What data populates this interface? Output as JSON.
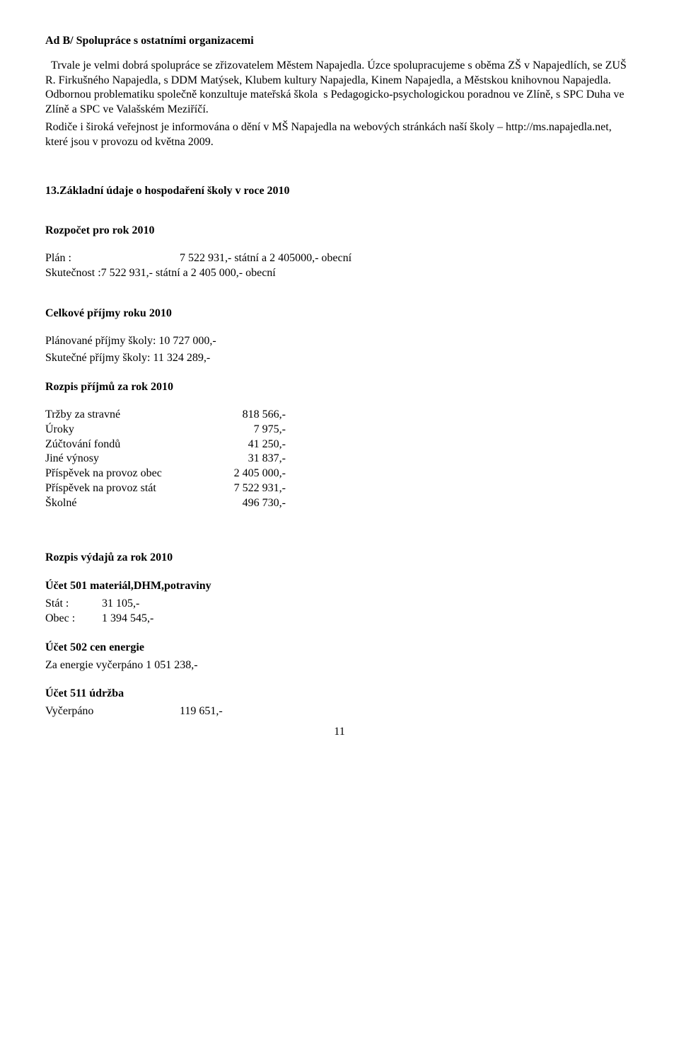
{
  "heading_adb": "Ad B/ Spolupráce s ostatními organizacemi",
  "para1": "  Trvale je velmi dobrá spolupráce se zřizovatelem Městem Napajedla. Úzce spolupracujeme s oběma ZŠ v Napajedlích, se ZUŠ R. Firkušného Napajedla, s DDM Matýsek, Klubem kultury Napajedla, Kinem Napajedla, a Městskou knihovnou Napajedla. Odbornou problematiku společně konzultuje mateřská škola  s Pedagogicko-psychologickou poradnou ve Zlíně, s SPC Duha ve Zlíně a SPC ve Valašském Meziříčí.",
  "para2": "Rodiče i široká veřejnost je informována o dění v MŠ Napajedla na webových stránkách naší školy – http://ms.napajedla.net, které jsou v provozu od května 2009.",
  "s13_title": "13.Základní údaje o hospodaření školy v roce 2010",
  "rozpocet_title": "Rozpočet pro rok 2010",
  "plan_label": "Plán :",
  "plan_value": "7 522 931,- státní a 2 405000,- obecní",
  "skut_line": "Skutečnost :7 522 931,- státní a 2 405 000,- obecní",
  "celkove_prijmy_title": "Celkové příjmy roku 2010",
  "planovane_prijmy": "Plánované příjmy školy: 10 727  000,-",
  "skutecne_prijmy": "Skutečné  příjmy školy: 11 324  289,-",
  "rozpis_prijmu_title": "Rozpis příjmů za rok  2010",
  "prijmy": [
    {
      "k": "Tržby za stravné",
      "v": "818  566,-"
    },
    {
      "k": "Úroky",
      "v": "7  975,-"
    },
    {
      "k": "Zúčtování fondů",
      "v": "41  250,-"
    },
    {
      "k": "Jiné výnosy",
      "v": "31  837,-"
    },
    {
      "k": "Příspěvek na provoz obec",
      "v": "2 405 000,-"
    },
    {
      "k": "Příspěvek na provoz stát",
      "v": "7 522 931,-"
    },
    {
      "k": "Školné",
      "v": "496 730,-"
    }
  ],
  "rozpis_vydaju_title": "Rozpis výdajů za rok 2010",
  "ucet501_title": "Účet 501 materiál,DHM,potraviny",
  "stat_label": "Stát :",
  "stat_value": "31 105,-",
  "obec_label": "Obec :",
  "obec_value": "1   394 545,-",
  "ucet502_title": "Účet 502 cen energie",
  "ucet502_line": "Za energie vyčerpáno  1 051 238,-",
  "ucet511_title": "Účet 511 údržba",
  "vycerp_label": "Vyčerpáno",
  "vycerp_value": "119 651,-",
  "page_number": "11"
}
